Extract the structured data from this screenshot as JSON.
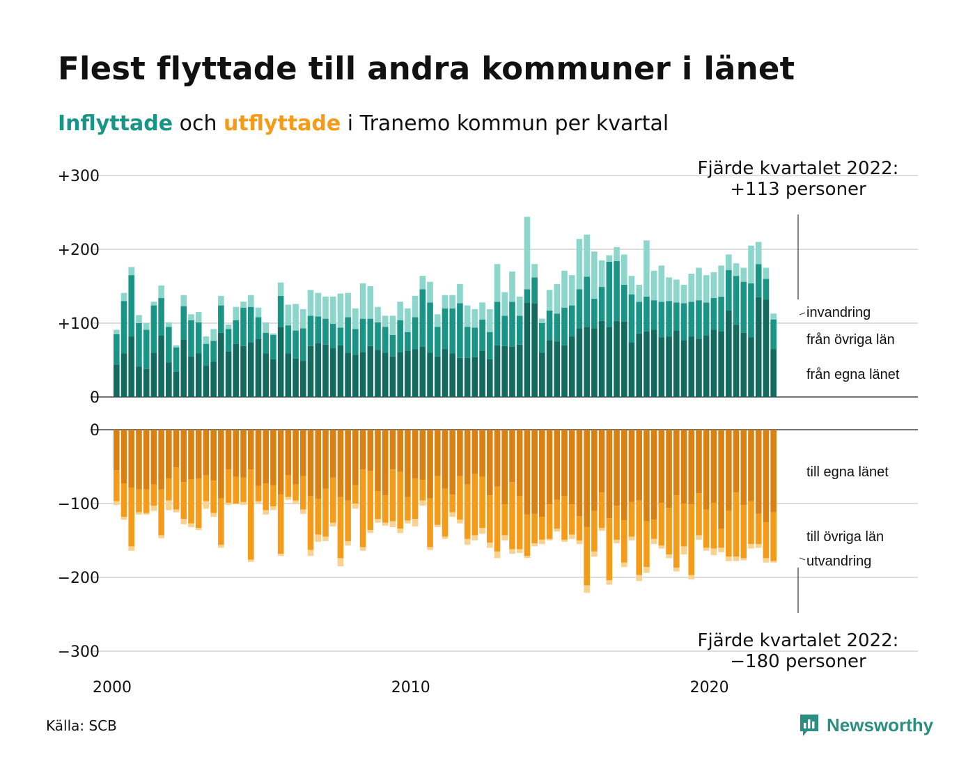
{
  "title": "Flest flyttade till andra kommuner i länet",
  "subtitle": {
    "in_word": "Inflyttade",
    "mid": " och ",
    "out_word": "utflyttade",
    "rest": " i Tranemo kommun per kvartal"
  },
  "source": "Källa: SCB",
  "brand": "Newsworthy",
  "colors": {
    "in_own": "#136b60",
    "in_other": "#1a9485",
    "in_immigration": "#8dd6cc",
    "out_own": "#d98112",
    "out_other": "#f49c1a",
    "out_emigration": "#fad28f",
    "brand": "#2a8f82"
  },
  "chart_data": {
    "type": "bar",
    "stacked": true,
    "unit": "personer",
    "x_start": "2000 Q1",
    "x_ticks": [
      "2000",
      "2010",
      "2020"
    ],
    "y_ticks_top": [
      "+300",
      "+200",
      "+100",
      "0"
    ],
    "y_ticks_bottom": [
      "0",
      "−100",
      "−200",
      "−300"
    ],
    "ylim_top": [
      0,
      300
    ],
    "ylim_bottom": [
      -300,
      0
    ],
    "annotation_top": {
      "line1": "Fjärde kvartalet 2022:",
      "line2": "+113 personer"
    },
    "annotation_bottom": {
      "line1": "Fjärde kvartalet 2022:",
      "line2": "−180 personer"
    },
    "inflow_series": [
      {
        "name": "från egna länet",
        "values": [
          44,
          59,
          82,
          41,
          38,
          60,
          83,
          47,
          34,
          78,
          55,
          59,
          42,
          48,
          87,
          62,
          72,
          69,
          74,
          79,
          59,
          51,
          95,
          59,
          52,
          49,
          69,
          73,
          71,
          66,
          70,
          60,
          57,
          61,
          69,
          64,
          60,
          55,
          61,
          63,
          65,
          68,
          60,
          55,
          65,
          59,
          53,
          53,
          54,
          63,
          51,
          70,
          69,
          68,
          71,
          128,
          127,
          60,
          77,
          75,
          70,
          82,
          93,
          95,
          93,
          103,
          95,
          103,
          102,
          74,
          86,
          89,
          91,
          81,
          82,
          90,
          77,
          82,
          79,
          83,
          91,
          89,
          117,
          98,
          87,
          81,
          135,
          132,
          65
        ]
      },
      {
        "name": "från övriga län",
        "values": [
          41,
          71,
          83,
          59,
          53,
          64,
          51,
          48,
          33,
          45,
          49,
          42,
          30,
          28,
          37,
          30,
          32,
          52,
          48,
          29,
          28,
          33,
          42,
          38,
          38,
          44,
          41,
          36,
          35,
          33,
          24,
          48,
          35,
          45,
          37,
          37,
          35,
          29,
          43,
          25,
          43,
          78,
          68,
          40,
          55,
          61,
          74,
          42,
          40,
          42,
          37,
          59,
          41,
          61,
          39,
          18,
          35,
          40,
          40,
          38,
          51,
          42,
          53,
          68,
          40,
          46,
          88,
          81,
          50,
          65,
          43,
          47,
          40,
          48,
          48,
          38,
          50,
          47,
          52,
          45,
          43,
          47,
          55,
          66,
          69,
          73,
          45,
          28,
          40
        ]
      },
      {
        "name": "invandring",
        "values": [
          6,
          11,
          11,
          11,
          9,
          5,
          17,
          6,
          3,
          15,
          8,
          14,
          10,
          16,
          13,
          6,
          18,
          8,
          16,
          13,
          14,
          2,
          18,
          28,
          36,
          26,
          35,
          32,
          30,
          37,
          46,
          33,
          28,
          48,
          44,
          21,
          15,
          26,
          25,
          32,
          29,
          18,
          28,
          17,
          18,
          18,
          26,
          29,
          25,
          23,
          31,
          51,
          32,
          41,
          26,
          98,
          18,
          6,
          28,
          40,
          50,
          41,
          68,
          57,
          64,
          36,
          9,
          19,
          41,
          25,
          23,
          76,
          40,
          49,
          32,
          31,
          25,
          38,
          44,
          37,
          35,
          42,
          21,
          17,
          19,
          51,
          30,
          15,
          8
        ]
      }
    ],
    "outflow_series": [
      {
        "name": "till egna länet",
        "values": [
          -55,
          -73,
          -79,
          -81,
          -81,
          -74,
          -81,
          -66,
          -51,
          -71,
          -67,
          -66,
          -62,
          -69,
          -93,
          -54,
          -64,
          -65,
          -54,
          -76,
          -73,
          -75,
          -88,
          -62,
          -74,
          -63,
          -90,
          -94,
          -80,
          -65,
          -91,
          -96,
          -75,
          -54,
          -56,
          -83,
          -89,
          -54,
          -57,
          -91,
          -66,
          -68,
          -93,
          -63,
          -80,
          -88,
          -63,
          -74,
          -60,
          -64,
          -89,
          -77,
          -101,
          -71,
          -90,
          -115,
          -114,
          -118,
          -101,
          -95,
          -90,
          -101,
          -117,
          -132,
          -110,
          -85,
          -120,
          -103,
          -123,
          -98,
          -96,
          -124,
          -122,
          -99,
          -106,
          -89,
          -100,
          -101,
          -86,
          -108,
          -99,
          -134,
          -110,
          -85,
          -102,
          -97,
          -114,
          -125,
          -112
        ]
      },
      {
        "name": "till övriga län",
        "values": [
          -42,
          -45,
          -79,
          -31,
          -32,
          -29,
          -62,
          -30,
          -57,
          -50,
          -60,
          -67,
          -35,
          -44,
          -63,
          -45,
          -36,
          -33,
          -122,
          -21,
          -36,
          -29,
          -80,
          -29,
          -22,
          -45,
          -73,
          -48,
          -65,
          -61,
          -83,
          -55,
          -25,
          -105,
          -80,
          -38,
          -37,
          -70,
          -77,
          -32,
          -55,
          -28,
          -66,
          -66,
          -65,
          -24,
          -59,
          -74,
          -83,
          -69,
          -64,
          -88,
          -42,
          -91,
          -72,
          -56,
          -40,
          -31,
          -47,
          -39,
          -59,
          -41,
          -33,
          -79,
          -55,
          -48,
          -84,
          -46,
          -57,
          -47,
          -101,
          -62,
          -26,
          -58,
          -63,
          -98,
          -58,
          -96,
          -57,
          -52,
          -62,
          -26,
          -62,
          -87,
          -72,
          -58,
          -41,
          -49,
          -66
        ]
      },
      {
        "name": "utvandring",
        "values": [
          -5,
          -4,
          -6,
          -3,
          -2,
          -7,
          -4,
          -13,
          -4,
          -7,
          -5,
          -3,
          -10,
          -5,
          -4,
          -3,
          -1,
          -4,
          -3,
          -3,
          -6,
          -5,
          -3,
          -4,
          -4,
          -6,
          -8,
          -10,
          -6,
          -5,
          -11,
          -6,
          -7,
          -5,
          -4,
          -5,
          -4,
          -8,
          -6,
          -4,
          -10,
          -7,
          -4,
          -3,
          -3,
          -6,
          -5,
          -8,
          -7,
          -8,
          -7,
          -9,
          -7,
          -6,
          -5,
          -3,
          -4,
          -6,
          -2,
          -4,
          -3,
          -6,
          -5,
          -10,
          -7,
          -4,
          -6,
          -5,
          -6,
          -5,
          -8,
          -8,
          -7,
          -4,
          -5,
          -5,
          -11,
          -6,
          -6,
          -4,
          -9,
          -6,
          -6,
          -6,
          -3,
          -6,
          -5,
          -6,
          -2
        ]
      }
    ]
  }
}
